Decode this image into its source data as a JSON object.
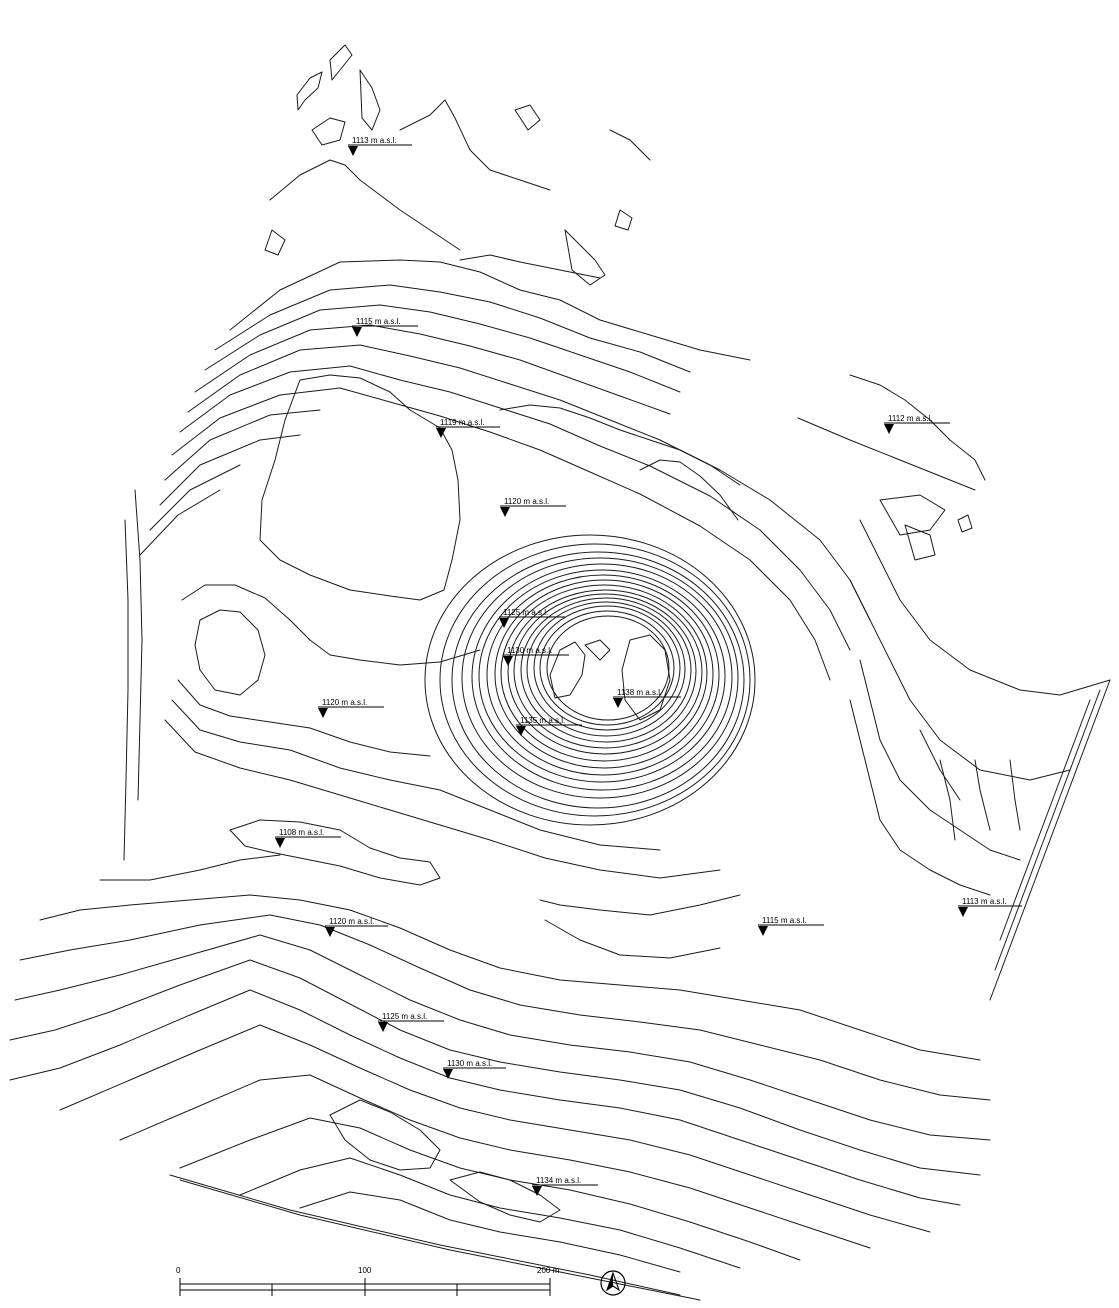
{
  "map": {
    "elevation_labels": [
      {
        "id": "n-1113",
        "text": "1113 m a.s.l."
      },
      {
        "id": "nw-1115",
        "text": "1115 m a.s.l."
      },
      {
        "id": "ne-1112",
        "text": "1112 m a.s.l."
      },
      {
        "id": "c-1119",
        "text": "1119 m a.s.l."
      },
      {
        "id": "c-1120a",
        "text": "1120 m a.s.l."
      },
      {
        "id": "w-1120",
        "text": "1120 m a.s.l."
      },
      {
        "id": "hill-1125",
        "text": "1125 m a.s.l."
      },
      {
        "id": "hill-1130",
        "text": "1130 m a.s.l."
      },
      {
        "id": "hill-1138",
        "text": "1138 m a.s.l."
      },
      {
        "id": "hill-1135",
        "text": "1135 m a.s.l."
      },
      {
        "id": "sw-1108",
        "text": "1108 m a.s.l."
      },
      {
        "id": "s-1120",
        "text": "1120 m a.s.l."
      },
      {
        "id": "se-1115",
        "text": "1115 m a.s.l."
      },
      {
        "id": "e-1113",
        "text": "1113 m a.s.l."
      },
      {
        "id": "s-1125",
        "text": "1125 m a.s.l."
      },
      {
        "id": "s-1130",
        "text": "1130 m a.s.l."
      },
      {
        "id": "s-1134",
        "text": "1134 m a.s.l."
      }
    ],
    "scale_bar": {
      "unit": "m",
      "ticks": [
        "0",
        "100",
        "200 m"
      ]
    },
    "north_arrow": {
      "letter": "N"
    },
    "colors": {
      "line": "#1a1a1a",
      "background": "#ffffff"
    }
  }
}
